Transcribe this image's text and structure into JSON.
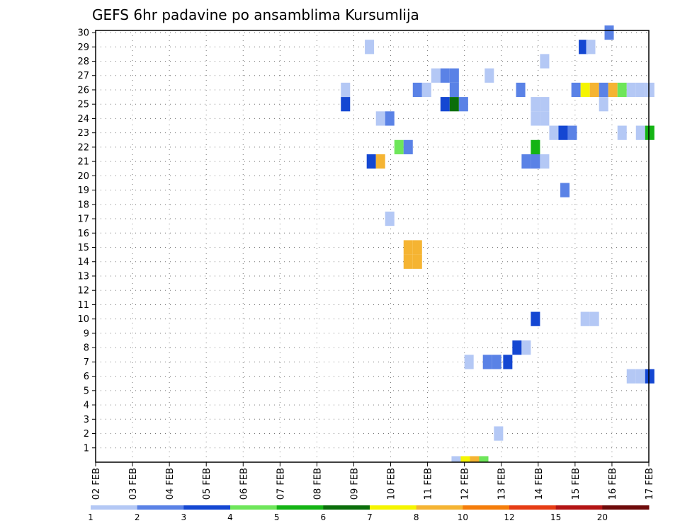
{
  "chart_data": {
    "type": "heatmap",
    "title": "GEFS 6hr padavine po ansamblima Kursumlija",
    "xlabel": "",
    "ylabel": "",
    "x_ticks": [
      "02 FEB",
      "03 FEB",
      "04 FEB",
      "05 FEB",
      "06 FEB",
      "07 FEB",
      "08 FEB",
      "09 FEB",
      "10 FEB",
      "11 FEB",
      "12 FEB",
      "13 FEB",
      "14 FEB",
      "15 FEB",
      "16 FEB",
      "17 FEB"
    ],
    "x_range_days": [
      0,
      15
    ],
    "y_ticks": [
      1,
      2,
      3,
      4,
      5,
      6,
      7,
      8,
      9,
      10,
      11,
      12,
      13,
      14,
      15,
      16,
      17,
      18,
      19,
      20,
      21,
      22,
      23,
      24,
      25,
      26,
      27,
      28,
      29,
      30
    ],
    "y_range": [
      0,
      30
    ],
    "grid": true,
    "legend": {
      "placement": "bottom",
      "labels": [
        "1",
        "2",
        "3",
        "4",
        "5",
        "6",
        "7",
        "8",
        "10",
        "12",
        "15",
        "20"
      ],
      "colors": [
        "#b4c8f5",
        "#5a82e6",
        "#1447d2",
        "#6ee65a",
        "#14b414",
        "#0a6e0a",
        "#f5f500",
        "#f5b432",
        "#f57d0a",
        "#e63c14",
        "#b41414",
        "#6e0a0a"
      ]
    },
    "cells": [
      {
        "day": 13.8,
        "member": 30,
        "color": "#5a82e6"
      },
      {
        "day": 7.3,
        "member": 29,
        "color": "#b4c8f5"
      },
      {
        "day": 13.1,
        "member": 29,
        "color": "#1447d2"
      },
      {
        "day": 13.3,
        "member": 29,
        "color": "#b4c8f5"
      },
      {
        "day": 12.05,
        "member": 28,
        "color": "#b4c8f5"
      },
      {
        "day": 9.1,
        "member": 27,
        "color": "#b4c8f5"
      },
      {
        "day": 9.35,
        "member": 27,
        "color": "#5a82e6"
      },
      {
        "day": 9.6,
        "member": 27,
        "color": "#5a82e6"
      },
      {
        "day": 10.55,
        "member": 27,
        "color": "#b4c8f5"
      },
      {
        "day": 6.65,
        "member": 26,
        "color": "#b4c8f5"
      },
      {
        "day": 8.6,
        "member": 26,
        "color": "#5a82e6"
      },
      {
        "day": 8.85,
        "member": 26,
        "color": "#b4c8f5"
      },
      {
        "day": 9.6,
        "member": 26,
        "color": "#5a82e6"
      },
      {
        "day": 11.4,
        "member": 26,
        "color": "#5a82e6"
      },
      {
        "day": 12.9,
        "member": 26,
        "color": "#5a82e6"
      },
      {
        "day": 13.15,
        "member": 26,
        "color": "#f5f500"
      },
      {
        "day": 13.4,
        "member": 26,
        "color": "#f5b432"
      },
      {
        "day": 13.65,
        "member": 26,
        "color": "#5a82e6"
      },
      {
        "day": 13.9,
        "member": 26,
        "color": "#f5b432"
      },
      {
        "day": 14.15,
        "member": 26,
        "color": "#6ee65a"
      },
      {
        "day": 14.4,
        "member": 26,
        "color": "#b4c8f5"
      },
      {
        "day": 14.65,
        "member": 26,
        "color": "#b4c8f5"
      },
      {
        "day": 14.9,
        "member": 26,
        "color": "#b4c8f5"
      },
      {
        "day": 6.65,
        "member": 25,
        "color": "#1447d2"
      },
      {
        "day": 9.35,
        "member": 25,
        "color": "#1447d2"
      },
      {
        "day": 9.6,
        "member": 25,
        "color": "#0a6e0a"
      },
      {
        "day": 9.85,
        "member": 25,
        "color": "#5a82e6"
      },
      {
        "day": 11.8,
        "member": 25,
        "color": "#b4c8f5"
      },
      {
        "day": 12.05,
        "member": 25,
        "color": "#b4c8f5"
      },
      {
        "day": 13.65,
        "member": 25,
        "color": "#b4c8f5"
      },
      {
        "day": 11.8,
        "member": 24,
        "color": "#b4c8f5"
      },
      {
        "day": 12.05,
        "member": 24,
        "color": "#b4c8f5"
      },
      {
        "day": 7.6,
        "member": 24,
        "color": "#b4c8f5"
      },
      {
        "day": 7.85,
        "member": 24,
        "color": "#5a82e6"
      },
      {
        "day": 12.3,
        "member": 23,
        "color": "#b4c8f5"
      },
      {
        "day": 12.55,
        "member": 23,
        "color": "#1447d2"
      },
      {
        "day": 12.8,
        "member": 23,
        "color": "#5a82e6"
      },
      {
        "day": 14.15,
        "member": 23,
        "color": "#b4c8f5"
      },
      {
        "day": 14.65,
        "member": 23,
        "color": "#b4c8f5"
      },
      {
        "day": 14.9,
        "member": 23,
        "color": "#14b414"
      },
      {
        "day": 8.1,
        "member": 22,
        "color": "#6ee65a"
      },
      {
        "day": 8.35,
        "member": 22,
        "color": "#5a82e6"
      },
      {
        "day": 11.8,
        "member": 22,
        "color": "#14b414"
      },
      {
        "day": 7.35,
        "member": 21,
        "color": "#1447d2"
      },
      {
        "day": 7.6,
        "member": 21,
        "color": "#f5b432"
      },
      {
        "day": 11.55,
        "member": 21,
        "color": "#5a82e6"
      },
      {
        "day": 11.8,
        "member": 21,
        "color": "#5a82e6"
      },
      {
        "day": 12.05,
        "member": 21,
        "color": "#b4c8f5"
      },
      {
        "day": 12.6,
        "member": 19,
        "color": "#5a82e6"
      },
      {
        "day": 7.85,
        "member": 17,
        "color": "#b4c8f5"
      },
      {
        "day": 8.35,
        "member": 15,
        "color": "#f5b432"
      },
      {
        "day": 8.6,
        "member": 15,
        "color": "#f5b432"
      },
      {
        "day": 8.35,
        "member": 14,
        "color": "#f5b432"
      },
      {
        "day": 8.6,
        "member": 14,
        "color": "#f5b432"
      },
      {
        "day": 11.8,
        "member": 10,
        "color": "#1447d2"
      },
      {
        "day": 13.15,
        "member": 10,
        "color": "#b4c8f5"
      },
      {
        "day": 13.4,
        "member": 10,
        "color": "#b4c8f5"
      },
      {
        "day": 11.3,
        "member": 8,
        "color": "#1447d2"
      },
      {
        "day": 11.55,
        "member": 8,
        "color": "#b4c8f5"
      },
      {
        "day": 10.0,
        "member": 7,
        "color": "#b4c8f5"
      },
      {
        "day": 10.5,
        "member": 7,
        "color": "#5a82e6"
      },
      {
        "day": 10.75,
        "member": 7,
        "color": "#5a82e6"
      },
      {
        "day": 11.05,
        "member": 7,
        "color": "#1447d2"
      },
      {
        "day": 14.4,
        "member": 6,
        "color": "#b4c8f5"
      },
      {
        "day": 14.65,
        "member": 6,
        "color": "#b4c8f5"
      },
      {
        "day": 14.9,
        "member": 6,
        "color": "#1447d2"
      },
      {
        "day": 10.8,
        "member": 2,
        "color": "#b4c8f5"
      },
      {
        "day": 9.65,
        "member": 0,
        "color": "#b4c8f5"
      },
      {
        "day": 9.9,
        "member": 0,
        "color": "#f5f500"
      },
      {
        "day": 10.15,
        "member": 0,
        "color": "#f5b432"
      },
      {
        "day": 10.4,
        "member": 0,
        "color": "#6ee65a"
      }
    ]
  }
}
